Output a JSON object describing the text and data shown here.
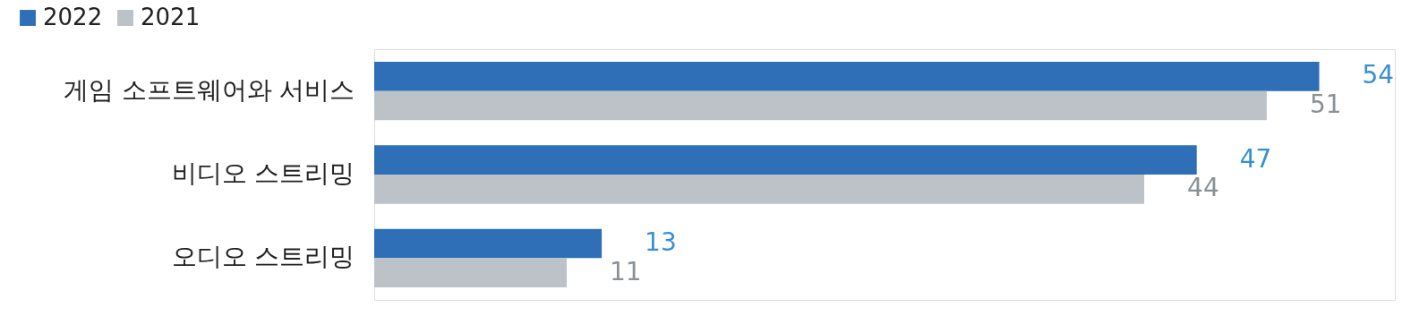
{
  "chart_data": {
    "type": "bar",
    "orientation": "horizontal",
    "data_labels": true,
    "legend": "top left",
    "categories": [
      "게임 소프트웨어와 서비스",
      "비디오 스트리밍",
      "오디오 스트리밍"
    ],
    "series": [
      {
        "name": "2022",
        "color": "#2e6fb7",
        "values": [
          54,
          47,
          13
        ]
      },
      {
        "name": "2021",
        "color": "#bcc2c8",
        "values": [
          51,
          44,
          11
        ]
      }
    ]
  }
}
